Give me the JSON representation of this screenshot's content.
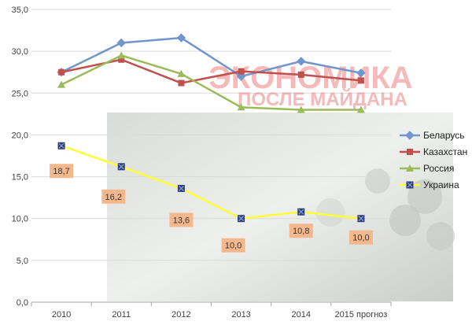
{
  "watermark": {
    "line1": "ЭКОНОМИКА",
    "line2": "ПОСЛЕ МАЙДАНА"
  },
  "chart_data": {
    "type": "line",
    "categories": [
      "2010",
      "2011",
      "2012",
      "2013",
      "2014",
      "2015 прогноз"
    ],
    "ylim": [
      0,
      35
    ],
    "yticks": [
      "0,0",
      "5,0",
      "10,0",
      "15,0",
      "20,0",
      "25,0",
      "30,0",
      "35,0"
    ],
    "grid": true,
    "legend_position": "right",
    "series": [
      {
        "name": "Беларусь",
        "color": "#7096cc",
        "marker": "diamond",
        "values": [
          27.5,
          31.0,
          31.6,
          27.0,
          28.8,
          27.4
        ]
      },
      {
        "name": "Казахстан",
        "color": "#c0504d",
        "marker": "square",
        "values": [
          27.5,
          29.0,
          26.2,
          27.6,
          27.2,
          26.5
        ]
      },
      {
        "name": "Россия",
        "color": "#9bbb59",
        "marker": "triangle",
        "values": [
          26.0,
          29.5,
          27.3,
          23.3,
          23.0,
          23.0
        ]
      },
      {
        "name": "Украина",
        "color": "#ffff33",
        "marker": "xsquare",
        "values": [
          18.7,
          16.2,
          13.6,
          10.0,
          10.8,
          10.0
        ],
        "labels": [
          "18,7",
          "16,2",
          "13,6",
          "10,0",
          "10,8",
          "10,0"
        ]
      }
    ]
  }
}
